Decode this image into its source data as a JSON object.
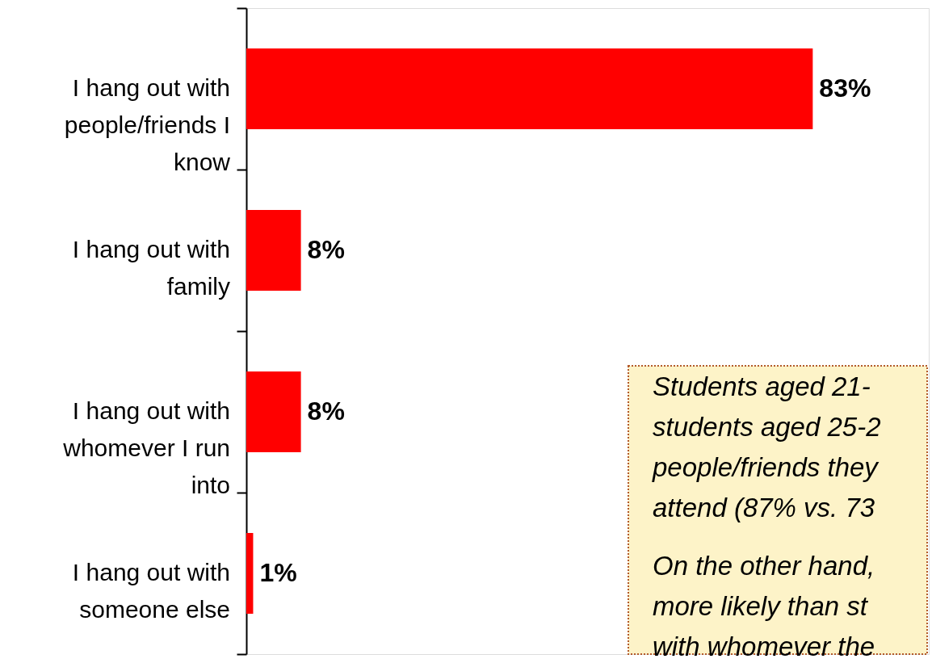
{
  "chart_data": {
    "type": "bar",
    "orientation": "horizontal",
    "categories": [
      "I hang out with people/friends I know",
      "I hang out with family",
      "I hang out with whomever I run into",
      "I hang out with someone else"
    ],
    "values": [
      83,
      8,
      8,
      1
    ],
    "value_labels": [
      "83%",
      "8%",
      "8%",
      "1%"
    ],
    "color": "#ff0000",
    "xlim": [
      0,
      100
    ],
    "tick_labels": "y",
    "annotations": [
      "Students aged 21-",
      "students aged 25-2",
      "people/friends they",
      "attend (87% vs. 73",
      "On the other hand,",
      "more likely than st",
      "with whomever the"
    ]
  }
}
